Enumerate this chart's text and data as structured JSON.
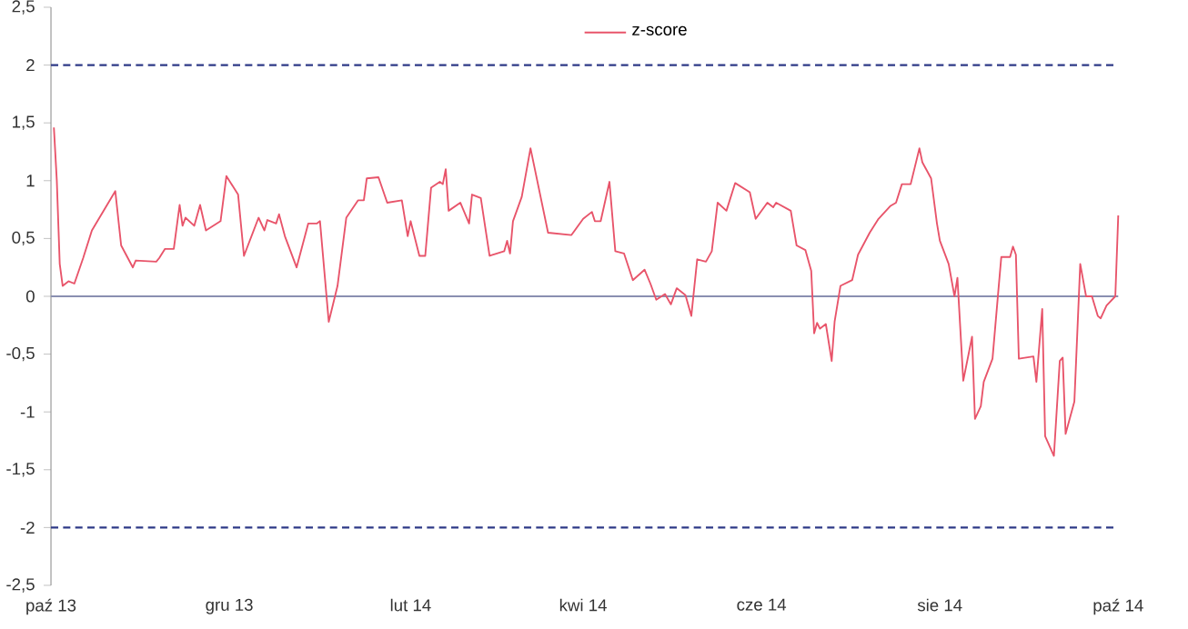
{
  "chart_data": {
    "type": "line",
    "x": [
      "2013-10-02",
      "2013-10-03",
      "2013-10-04",
      "2013-10-05",
      "2013-10-07",
      "2013-10-09",
      "2013-10-12",
      "2013-10-15",
      "2013-10-23",
      "2013-10-25",
      "2013-10-29",
      "2013-10-30",
      "2013-11-06",
      "2013-11-07",
      "2013-11-09",
      "2013-11-12",
      "2013-11-14",
      "2013-11-15",
      "2013-11-16",
      "2013-11-19",
      "2013-11-21",
      "2013-11-23",
      "2013-11-28",
      "2013-11-30",
      "2013-12-04",
      "2013-12-06",
      "2013-12-11",
      "2013-12-13",
      "2013-12-14",
      "2013-12-17",
      "2013-12-18",
      "2013-12-20",
      "2013-12-24",
      "2013-12-28",
      "2013-12-31",
      "2014-01-01",
      "2014-01-04",
      "2014-01-07",
      "2014-01-10",
      "2014-01-14",
      "2014-01-16",
      "2014-01-17",
      "2014-01-21",
      "2014-01-24",
      "2014-01-29",
      "2014-01-31",
      "2014-02-01",
      "2014-02-04",
      "2014-02-06",
      "2014-02-08",
      "2014-02-11",
      "2014-02-12",
      "2014-02-13",
      "2014-02-14",
      "2014-02-18",
      "2014-02-21",
      "2014-02-22",
      "2014-02-25",
      "2014-02-28",
      "2014-03-05",
      "2014-03-06",
      "2014-03-07",
      "2014-03-08",
      "2014-03-11",
      "2014-03-14",
      "2014-03-20",
      "2014-03-28",
      "2014-04-01",
      "2014-04-04",
      "2014-04-05",
      "2014-04-07",
      "2014-04-10",
      "2014-04-12",
      "2014-04-15",
      "2014-04-18",
      "2014-04-22",
      "2014-04-24",
      "2014-04-26",
      "2014-04-29",
      "2014-05-01",
      "2014-05-03",
      "2014-05-06",
      "2014-05-08",
      "2014-05-10",
      "2014-05-13",
      "2014-05-15",
      "2014-05-17",
      "2014-05-20",
      "2014-05-23",
      "2014-05-28",
      "2014-05-30",
      "2014-06-03",
      "2014-06-05",
      "2014-06-06",
      "2014-06-11",
      "2014-06-13",
      "2014-06-16",
      "2014-06-18",
      "2014-06-19",
      "2014-06-20",
      "2014-06-21",
      "2014-06-23",
      "2014-06-25",
      "2014-06-26",
      "2014-06-28",
      "2014-07-02",
      "2014-07-04",
      "2014-07-08",
      "2014-07-11",
      "2014-07-15",
      "2014-07-17",
      "2014-07-19",
      "2014-07-22",
      "2014-07-25",
      "2014-07-26",
      "2014-07-29",
      "2014-07-31",
      "2014-08-01",
      "2014-08-04",
      "2014-08-06",
      "2014-08-07",
      "2014-08-09",
      "2014-08-12",
      "2014-08-13",
      "2014-08-15",
      "2014-08-16",
      "2014-08-19",
      "2014-08-21",
      "2014-08-22",
      "2014-08-25",
      "2014-08-26",
      "2014-08-27",
      "2014-08-28",
      "2014-09-02",
      "2014-09-03",
      "2014-09-05",
      "2014-09-06",
      "2014-09-09",
      "2014-09-11",
      "2014-09-12",
      "2014-09-13",
      "2014-09-16",
      "2014-09-18",
      "2014-09-20",
      "2014-09-22",
      "2014-09-24",
      "2014-09-25",
      "2014-09-27",
      "2014-09-30",
      "2014-10-01"
    ],
    "series": [
      {
        "name": "z-score",
        "color": "#e8546a",
        "values": [
          1.46,
          1.0,
          0.28,
          0.09,
          0.13,
          0.11,
          0.33,
          0.57,
          0.91,
          0.44,
          0.25,
          0.31,
          0.3,
          0.33,
          0.41,
          0.41,
          0.79,
          0.61,
          0.68,
          0.61,
          0.79,
          0.57,
          0.65,
          1.04,
          0.88,
          0.35,
          0.68,
          0.57,
          0.66,
          0.63,
          0.71,
          0.52,
          0.25,
          0.63,
          0.63,
          0.65,
          -0.22,
          0.09,
          0.68,
          0.83,
          0.83,
          1.02,
          1.03,
          0.81,
          0.83,
          0.52,
          0.65,
          0.35,
          0.35,
          0.94,
          0.99,
          0.97,
          1.1,
          0.74,
          0.81,
          0.63,
          0.88,
          0.85,
          0.35,
          0.39,
          0.48,
          0.37,
          0.65,
          0.86,
          1.28,
          0.55,
          0.53,
          0.67,
          0.73,
          0.65,
          0.65,
          0.99,
          0.39,
          0.37,
          0.14,
          0.23,
          0.11,
          -0.03,
          0.02,
          -0.07,
          0.07,
          0.01,
          -0.17,
          0.32,
          0.3,
          0.39,
          0.81,
          0.74,
          0.98,
          0.9,
          0.67,
          0.81,
          0.77,
          0.81,
          0.74,
          0.44,
          0.4,
          0.22,
          -0.32,
          -0.23,
          -0.28,
          -0.24,
          -0.56,
          -0.22,
          0.09,
          0.14,
          0.36,
          0.55,
          0.67,
          0.78,
          0.81,
          0.97,
          0.97,
          1.28,
          1.16,
          1.02,
          0.63,
          0.48,
          0.28,
          0.0,
          0.16,
          -0.73,
          -0.35,
          -1.06,
          -0.95,
          -0.74,
          -0.54,
          0.05,
          0.34,
          0.34,
          0.43,
          0.36,
          -0.54,
          -0.52,
          -0.74,
          -0.11,
          -1.21,
          -1.38,
          -0.56,
          -0.53,
          -1.19,
          -0.91,
          0.28,
          0.0,
          0.0,
          -0.17,
          -0.19,
          -0.08,
          0.0,
          0.7
        ]
      }
    ],
    "xlim": [
      "2013-10-01",
      "2014-10-01"
    ],
    "xticks": [
      {
        "value": "2013-10-01",
        "label": "paź 13"
      },
      {
        "value": "2013-12-01",
        "label": "gru 13"
      },
      {
        "value": "2014-02-01",
        "label": "lut 14"
      },
      {
        "value": "2014-04-01",
        "label": "kwi 14"
      },
      {
        "value": "2014-06-01",
        "label": "cze 14"
      },
      {
        "value": "2014-08-01",
        "label": "sie 14"
      },
      {
        "value": "2014-10-01",
        "label": "paź 14"
      }
    ],
    "ylim": [
      -2.5,
      2.5
    ],
    "yticks": [
      {
        "value": -2.5,
        "label": "-2,5"
      },
      {
        "value": -2,
        "label": "-2"
      },
      {
        "value": -1.5,
        "label": "-1,5"
      },
      {
        "value": -1,
        "label": "-1"
      },
      {
        "value": -0.5,
        "label": "-0,5"
      },
      {
        "value": 0,
        "label": "0"
      },
      {
        "value": 0.5,
        "label": "0,5"
      },
      {
        "value": 1,
        "label": "1"
      },
      {
        "value": 1.5,
        "label": "1,5"
      },
      {
        "value": 2,
        "label": "2"
      },
      {
        "value": 2.5,
        "label": "2,5"
      }
    ],
    "ref_lines": [
      {
        "axis": "y",
        "value": 2,
        "color": "#2e3a87",
        "line_style": "dashed"
      },
      {
        "axis": "y",
        "value": 0,
        "color": "#8a8fb0",
        "line_style": "solid"
      },
      {
        "axis": "y",
        "value": -2,
        "color": "#2e3a87",
        "line_style": "dashed"
      }
    ],
    "legend": "top",
    "grid": false,
    "marker": "none",
    "line_style": "solid"
  }
}
